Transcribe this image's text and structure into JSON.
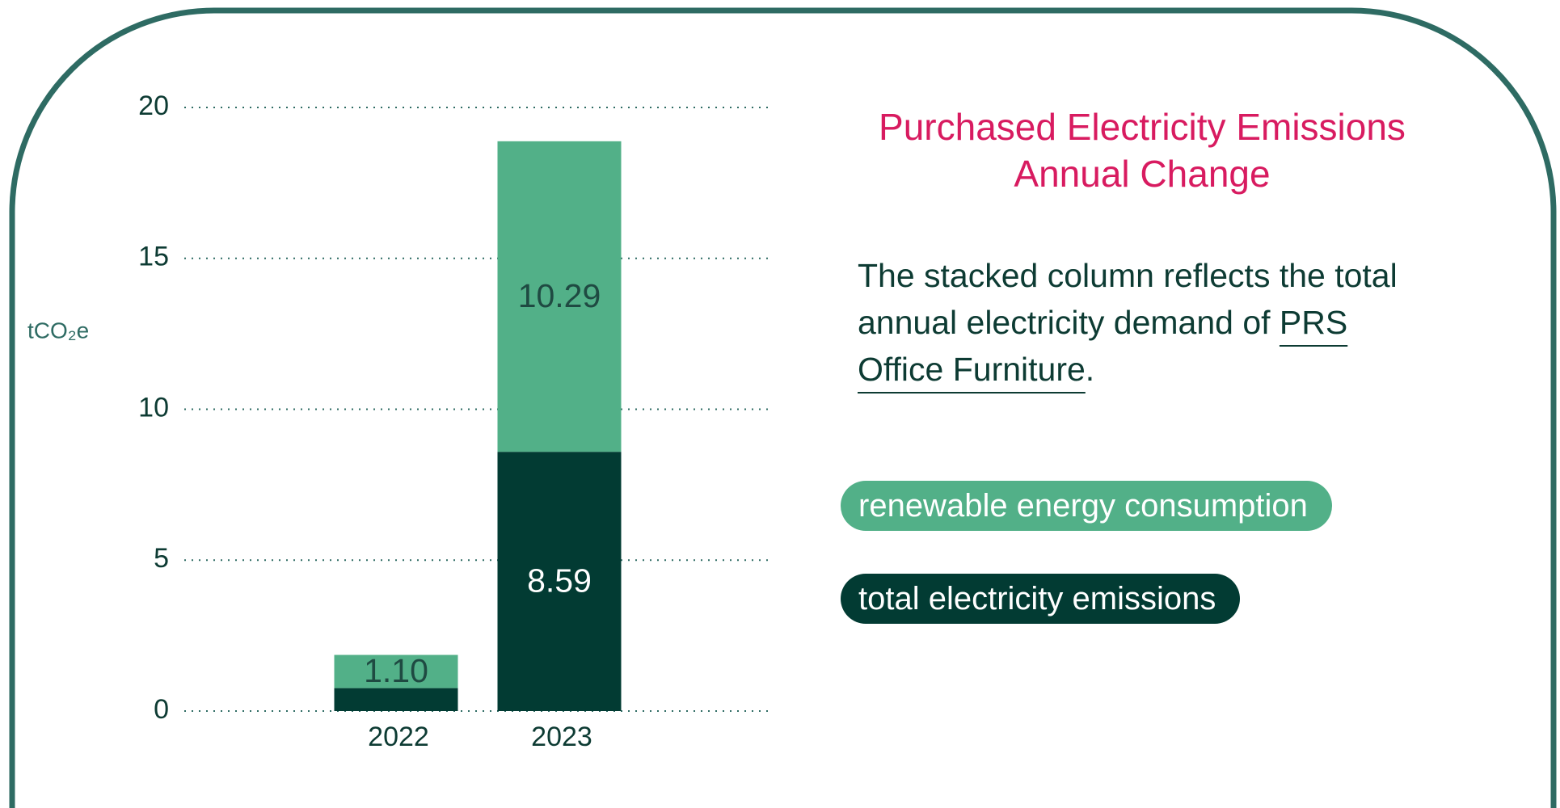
{
  "chart_data": {
    "type": "stacked_bar",
    "title_lines": [
      "Purchased Electricity Emissions",
      "Annual Change"
    ],
    "description": [
      "The stacked column reflects the total annual electricity demand of ",
      "PRS Office Furniture",
      "."
    ],
    "ylabel": "tCO₂e",
    "categories": [
      "2022",
      "2023"
    ],
    "series": [
      {
        "name": "total electricity emissions",
        "color": "#023b33",
        "label_color": "#ffffff",
        "values": [
          0.76,
          8.59
        ],
        "value_labels": [
          null,
          "8.59"
        ]
      },
      {
        "name": "renewable energy consumption",
        "color": "#52b088",
        "label_color": "#1f4a42",
        "values": [
          1.1,
          10.29
        ],
        "value_labels": [
          "1.10",
          "10.29"
        ]
      }
    ],
    "legend_order": [
      1,
      0
    ],
    "ylim": [
      0,
      20
    ],
    "yticks": [
      0,
      5,
      10,
      15,
      20
    ],
    "grid": true
  }
}
